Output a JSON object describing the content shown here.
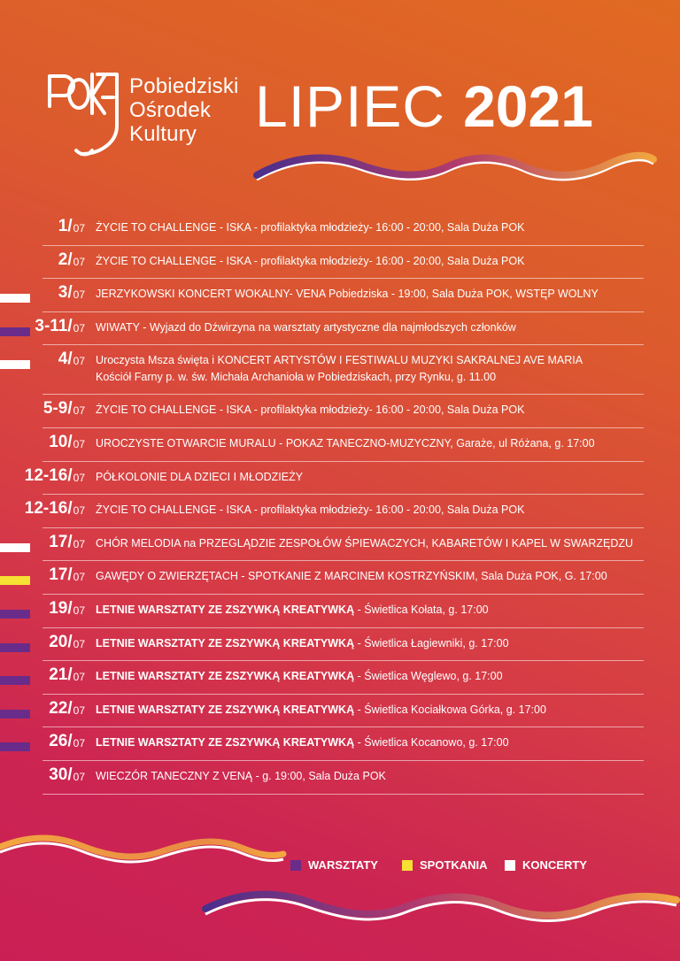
{
  "header": {
    "logo_lines": [
      "Pobiedziski",
      "Ośrodek",
      "Kultury"
    ],
    "month": "LIPIEC",
    "year": "2021"
  },
  "colors": {
    "warsztaty": "#6a2c8a",
    "spotkania": "#f6e033",
    "koncerty": "#ffffff"
  },
  "events": [
    {
      "day": "1/",
      "month": "07",
      "parts": [
        {
          "t": "ŻYCIE TO CHALLENGE - ISKA - profilaktyka  młodzieży- 16:00 - 20:00, Sala Duża POK",
          "b": false
        }
      ],
      "marker": ""
    },
    {
      "day": "2/",
      "month": "07",
      "parts": [
        {
          "t": "ŻYCIE TO CHALLENGE - ISKA - profilaktyka  młodzieży- 16:00 - 20:00, Sala Duża POK",
          "b": false
        }
      ],
      "marker": ""
    },
    {
      "day": "3/",
      "month": "07",
      "parts": [
        {
          "t": "JERZYKOWSKI KONCERT WOKALNY- VENA Pobiedziska - 19:00, Sala Duża POK, WSTĘP WOLNY",
          "b": false
        }
      ],
      "marker": "white"
    },
    {
      "day": "3-11/",
      "month": "07",
      "parts": [
        {
          "t": "WIWATY - Wyjazd do Dźwirzyna na warsztaty artystyczne dla najmłodszych członków",
          "b": false
        }
      ],
      "marker": "purple"
    },
    {
      "day": "4/",
      "month": "07",
      "parts": [
        {
          "t": "Uroczysta Msza święta i KONCERT ARTYSTÓW I FESTIWALU MUZYKI SAKRALNEJ AVE MARIA",
          "b": false
        }
      ],
      "line2": "Kościół Farny p. w. św. Michała Archanioła w Pobiedziskach, przy Rynku,  g. 11.00",
      "marker": "white"
    },
    {
      "day": "5-9/",
      "month": "07",
      "parts": [
        {
          "t": "ŻYCIE TO CHALLENGE - ISKA - profilaktyka  młodzieży- 16:00 - 20:00, Sala Duża POK",
          "b": false
        }
      ],
      "marker": ""
    },
    {
      "day": "10/",
      "month": "07",
      "parts": [
        {
          "t": "UROCZYSTE OTWARCIE MURALU - POKAZ TANECZNO-MUZYCZNY, Garaże, ul Różana, g. 17:00",
          "b": false
        }
      ],
      "marker": ""
    },
    {
      "day": "12-16/",
      "month": "07",
      "parts": [
        {
          "t": "PÓŁKOLONIE DLA DZIECI I MŁODZIEŻY",
          "b": false
        }
      ],
      "marker": ""
    },
    {
      "day": "12-16/",
      "month": "07",
      "parts": [
        {
          "t": "ŻYCIE TO CHALLENGE - ISKA - profilaktyka  młodzieży- 16:00 - 20:00, Sala Duża POK",
          "b": false
        }
      ],
      "marker": ""
    },
    {
      "day": "17/",
      "month": "07",
      "parts": [
        {
          "t": "CHÓR MELODIA na PRZEGLĄDZIE ZESPOŁÓW ŚPIEWACZYCH, KABARETÓW I KAPEL W  SWARZĘDZU",
          "b": false
        }
      ],
      "marker": "white"
    },
    {
      "day": "17/",
      "month": "07",
      "parts": [
        {
          "t": "GAWĘDY O ZWIERZĘTACH - SPOTKANIE Z MARCINEM KOSTRZYŃSKIM, Sala Duża POK, G. 17:00",
          "b": false
        }
      ],
      "marker": "yellow"
    },
    {
      "day": "19/",
      "month": "07",
      "parts": [
        {
          "t": "LETNIE WARSZTATY ZE ZSZYWKĄ KREATYWKĄ",
          "b": true
        },
        {
          "t": " - Świetlica Kołata, g. 17:00",
          "b": false
        }
      ],
      "marker": "purple"
    },
    {
      "day": "20/",
      "month": "07",
      "parts": [
        {
          "t": "LETNIE WARSZTATY ZE ZSZYWKĄ KREATYWKĄ",
          "b": true
        },
        {
          "t": " - Świetlica Łagiewniki, g. 17:00",
          "b": false
        }
      ],
      "marker": "purple"
    },
    {
      "day": "21/",
      "month": "07",
      "parts": [
        {
          "t": "LETNIE WARSZTATY ZE ZSZYWKĄ KREATYWKĄ",
          "b": true
        },
        {
          "t": " - Świetlica Węglewo, g. 17:00",
          "b": false
        }
      ],
      "marker": "purple"
    },
    {
      "day": "22/",
      "month": "07",
      "parts": [
        {
          "t": "LETNIE WARSZTATY ZE ZSZYWKĄ KREATYWKĄ",
          "b": true
        },
        {
          "t": " - Świetlica Kociałkowa Górka, g. 17:00",
          "b": false
        }
      ],
      "marker": "purple"
    },
    {
      "day": "26/",
      "month": "07",
      "parts": [
        {
          "t": "LETNIE WARSZTATY ZE ZSZYWKĄ KREATYWKĄ",
          "b": true
        },
        {
          "t": " - Świetlica Kocanowo, g. 17:00",
          "b": false
        }
      ],
      "marker": "purple"
    },
    {
      "day": "30/",
      "month": "07",
      "parts": [
        {
          "t": "WIECZÓR TANECZNY Z VENĄ - g. 19:00, Sala Duża POK",
          "b": false
        }
      ],
      "marker": ""
    }
  ],
  "legend": [
    {
      "label": "WARSZTATY",
      "color": "#6a2c8a"
    },
    {
      "label": "SPOTKANIA",
      "color": "#f6e033"
    },
    {
      "label": "KONCERTY",
      "color": "#ffffff"
    }
  ]
}
